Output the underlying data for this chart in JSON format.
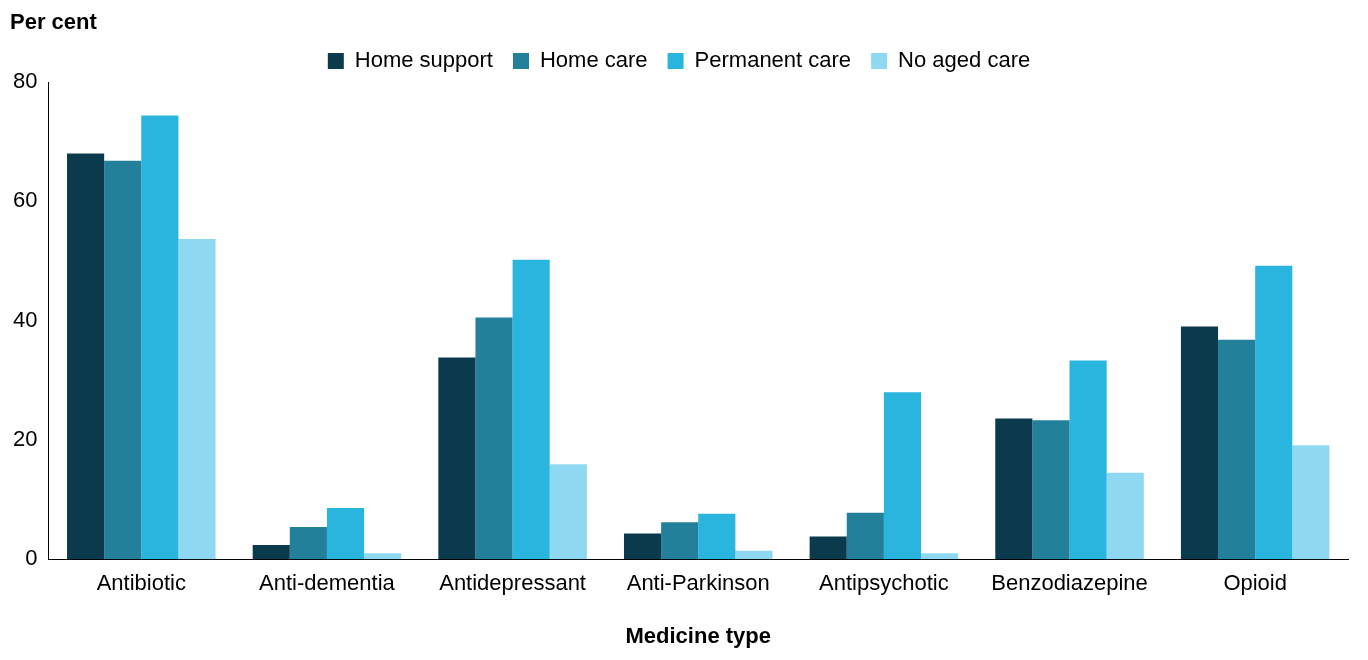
{
  "chart_data": {
    "type": "bar",
    "xlabel": "Medicine type",
    "ylabel": "Per cent",
    "categories": [
      "Antibiotic",
      "Anti-dementia",
      "Antidepressant",
      "Anti-Parkinson",
      "Antipsychotic",
      "Benzodiazepine",
      "Opioid"
    ],
    "series": [
      {
        "name": "Home support",
        "color": "#0a3a4c",
        "values": [
          68.0,
          2.4,
          33.8,
          4.3,
          3.8,
          23.6,
          39.0
        ]
      },
      {
        "name": "Home care",
        "color": "#22809a",
        "values": [
          66.8,
          5.4,
          40.5,
          6.2,
          7.8,
          23.3,
          36.8
        ]
      },
      {
        "name": "Permanent care",
        "color": "#29b5de",
        "values": [
          74.4,
          8.6,
          50.2,
          7.6,
          28.0,
          33.3,
          49.2
        ]
      },
      {
        "name": "No aged care",
        "color": "#8fd8f1",
        "values": [
          53.7,
          1.0,
          15.9,
          1.4,
          1.0,
          14.5,
          19.1
        ]
      }
    ],
    "ylim": [
      0,
      80
    ],
    "yticks": [
      0,
      20,
      40,
      60,
      80
    ],
    "grid": false,
    "legend": "top"
  }
}
